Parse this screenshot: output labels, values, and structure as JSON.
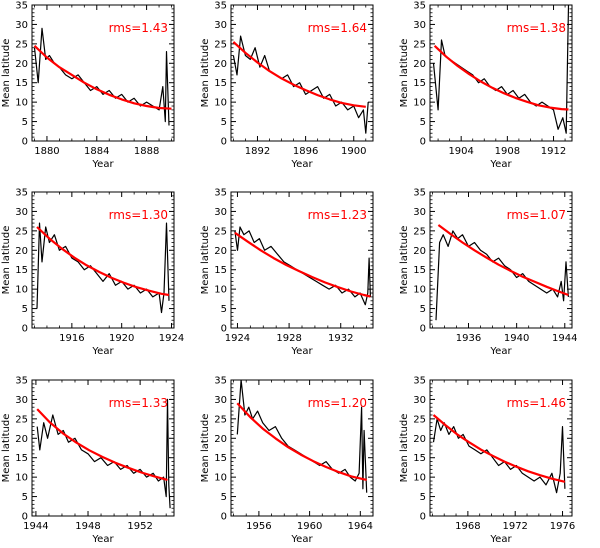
{
  "figure": {
    "colors": {
      "data": "#000000",
      "fit": "#ff0000",
      "rms": "#ff0000",
      "axes": "#000000"
    }
  },
  "chart_data": [
    {
      "type": "line",
      "title": "",
      "xlabel": "Year",
      "ylabel": "Mean latitude",
      "xlim": [
        1878.8,
        1890.2
      ],
      "ylim": [
        0,
        35
      ],
      "xticks": [
        1880,
        1884,
        1888
      ],
      "yticks": [
        0,
        5,
        10,
        15,
        20,
        25,
        30,
        35
      ],
      "annotation": "rms=1.43",
      "series": [
        {
          "name": "observed",
          "x": [
            1879.0,
            1879.3,
            1879.6,
            1879.9,
            1880.2,
            1880.6,
            1881.0,
            1881.5,
            1882.0,
            1882.5,
            1883.0,
            1883.5,
            1884.0,
            1884.5,
            1885.0,
            1885.5,
            1886.0,
            1886.5,
            1887.0,
            1887.5,
            1888.0,
            1888.5,
            1889.0,
            1889.3,
            1889.5,
            1889.6,
            1889.8
          ],
          "y": [
            24,
            15,
            29,
            21,
            22,
            20,
            19,
            17,
            16,
            17,
            15,
            13,
            14,
            12,
            13,
            11,
            12,
            10,
            11,
            9,
            10,
            9,
            8,
            14,
            5,
            23,
            4
          ]
        },
        {
          "name": "fit",
          "x": [
            1879,
            1880,
            1881,
            1882,
            1883,
            1884,
            1885,
            1886,
            1887,
            1888,
            1889,
            1890
          ],
          "y": [
            24.5,
            21.5,
            19,
            17,
            15,
            13.3,
            11.9,
            10.7,
            9.7,
            9,
            8.5,
            8.3
          ]
        }
      ]
    },
    {
      "type": "line",
      "title": "",
      "xlabel": "Year",
      "ylabel": "Mean latitude",
      "xlim": [
        1889.8,
        1901.6
      ],
      "ylim": [
        0,
        35
      ],
      "xticks": [
        1892,
        1896,
        1900
      ],
      "yticks": [
        0,
        5,
        10,
        15,
        20,
        25,
        30,
        35
      ],
      "annotation": "rms=1.64",
      "series": [
        {
          "name": "observed",
          "x": [
            1890.0,
            1890.3,
            1890.6,
            1891.0,
            1891.4,
            1891.8,
            1892.2,
            1892.6,
            1893.0,
            1893.5,
            1894.0,
            1894.5,
            1895.0,
            1895.5,
            1896.0,
            1896.5,
            1897.0,
            1897.5,
            1898.0,
            1898.5,
            1899.0,
            1899.5,
            1900.0,
            1900.4,
            1900.8,
            1901.0,
            1901.2
          ],
          "y": [
            22,
            17,
            27,
            22,
            21,
            24,
            19,
            22,
            18,
            17,
            16,
            17,
            14,
            15,
            12,
            13,
            14,
            11,
            12,
            9,
            10,
            8,
            9,
            6,
            8,
            2,
            10
          ]
        },
        {
          "name": "fit",
          "x": [
            1890,
            1891,
            1892,
            1893,
            1894,
            1895,
            1896,
            1897,
            1898,
            1899,
            1900,
            1901
          ],
          "y": [
            25.5,
            22.7,
            20.2,
            18,
            16.1,
            14.5,
            13.1,
            11.8,
            10.7,
            9.8,
            9.2,
            8.8
          ]
        }
      ]
    },
    {
      "type": "line",
      "title": "",
      "xlabel": "Year",
      "ylabel": "Mean latitude",
      "xlim": [
        1901.3,
        1913.6
      ],
      "ylim": [
        0,
        35
      ],
      "xticks": [
        1904,
        1908,
        1912
      ],
      "yticks": [
        0,
        5,
        10,
        15,
        20,
        25,
        30,
        35
      ],
      "annotation": "rms=1.38",
      "series": [
        {
          "name": "observed",
          "x": [
            1901.6,
            1902.0,
            1902.3,
            1902.6,
            1903.0,
            1903.5,
            1904.0,
            1904.5,
            1905.0,
            1905.5,
            1906.0,
            1906.5,
            1907.0,
            1907.5,
            1908.0,
            1908.5,
            1909.0,
            1909.5,
            1910.0,
            1910.5,
            1911.0,
            1911.5,
            1912.0,
            1912.4,
            1912.8,
            1913.1,
            1913.3
          ],
          "y": [
            20,
            8,
            26,
            22,
            21,
            20,
            19,
            18,
            17,
            15,
            16,
            14,
            13,
            14,
            12,
            13,
            11,
            12,
            10,
            9,
            10,
            9,
            8,
            3,
            6,
            2,
            35
          ]
        },
        {
          "name": "fit",
          "x": [
            1901.7,
            1902.7,
            1903.7,
            1904.7,
            1905.7,
            1906.7,
            1907.7,
            1908.7,
            1909.7,
            1910.7,
            1911.7,
            1912.7,
            1913.3
          ],
          "y": [
            24.5,
            21.7,
            19.3,
            17.2,
            15.3,
            13.7,
            12.3,
            11.1,
            10.1,
            9.2,
            8.6,
            8.2,
            8.1
          ]
        }
      ]
    },
    {
      "type": "line",
      "title": "",
      "xlabel": "Year",
      "ylabel": "Mean latitude",
      "xlim": [
        1912.8,
        1924.2
      ],
      "ylim": [
        0,
        35
      ],
      "xticks": [
        1916,
        1920,
        1924
      ],
      "yticks": [
        0,
        5,
        10,
        15,
        20,
        25,
        30,
        35
      ],
      "annotation": "rms=1.30",
      "series": [
        {
          "name": "observed",
          "x": [
            1913.2,
            1913.4,
            1913.6,
            1913.9,
            1914.2,
            1914.6,
            1915.0,
            1915.5,
            1916.0,
            1916.5,
            1917.0,
            1917.5,
            1918.0,
            1918.5,
            1919.0,
            1919.5,
            1920.0,
            1920.5,
            1921.0,
            1921.5,
            1922.0,
            1922.5,
            1923.0,
            1923.2,
            1923.4,
            1923.6,
            1923.8
          ],
          "y": [
            5,
            27,
            17,
            26,
            22,
            24,
            20,
            21,
            18,
            17,
            15,
            16,
            14,
            12,
            14,
            11,
            12,
            10,
            11,
            9,
            10,
            8,
            9,
            4,
            9,
            27,
            7
          ]
        },
        {
          "name": "fit",
          "x": [
            1913.2,
            1914.2,
            1915.2,
            1916.2,
            1917.2,
            1918.2,
            1919.2,
            1920.2,
            1921.2,
            1922.2,
            1923.2,
            1923.8
          ],
          "y": [
            26,
            23,
            20.4,
            18.1,
            16.1,
            14.4,
            12.9,
            11.6,
            10.5,
            9.6,
            8.8,
            8.5
          ]
        }
      ]
    },
    {
      "type": "line",
      "title": "",
      "xlabel": "Year",
      "ylabel": "Mean latitude",
      "xlim": [
        1923.5,
        1934.5
      ],
      "ylim": [
        0,
        35
      ],
      "xticks": [
        1924,
        1928,
        1932
      ],
      "yticks": [
        0,
        5,
        10,
        15,
        20,
        25,
        30,
        35
      ],
      "annotation": "rms=1.23",
      "series": [
        {
          "name": "observed",
          "x": [
            1923.8,
            1924.0,
            1924.2,
            1924.5,
            1924.9,
            1925.3,
            1925.7,
            1926.1,
            1926.6,
            1927.1,
            1927.6,
            1928.1,
            1928.6,
            1929.1,
            1929.6,
            1930.1,
            1930.6,
            1931.1,
            1931.6,
            1932.1,
            1932.6,
            1933.1,
            1933.5,
            1933.9,
            1934.1,
            1934.2,
            1934.3
          ],
          "y": [
            25,
            20,
            26,
            24,
            25,
            22,
            23,
            20,
            21,
            19,
            17,
            16,
            15,
            14,
            13,
            12,
            11,
            10,
            11,
            9,
            10,
            8,
            9,
            6,
            9,
            18,
            8
          ]
        },
        {
          "name": "fit",
          "x": [
            1923.8,
            1924.8,
            1925.8,
            1926.8,
            1927.8,
            1928.8,
            1929.8,
            1930.8,
            1931.8,
            1932.8,
            1933.8,
            1934.3
          ],
          "y": [
            24.5,
            22.2,
            20,
            18,
            16.2,
            14.6,
            13.1,
            11.7,
            10.5,
            9.4,
            8.5,
            8.1
          ]
        }
      ]
    },
    {
      "type": "line",
      "title": "",
      "xlabel": "Year",
      "ylabel": "Mean latitude",
      "xlim": [
        1932.8,
        1944.6
      ],
      "ylim": [
        0,
        35
      ],
      "xticks": [
        1936,
        1940,
        1944
      ],
      "yticks": [
        0,
        5,
        10,
        15,
        20,
        25,
        30,
        35
      ],
      "annotation": "rms=1.07",
      "series": [
        {
          "name": "observed",
          "x": [
            1933.3,
            1933.6,
            1933.9,
            1934.3,
            1934.7,
            1935.1,
            1935.5,
            1936.0,
            1936.5,
            1937.0,
            1937.5,
            1938.0,
            1938.5,
            1939.0,
            1939.5,
            1940.0,
            1940.5,
            1941.0,
            1941.5,
            1942.0,
            1942.5,
            1943.0,
            1943.4,
            1943.7,
            1943.9,
            1944.1,
            1944.3
          ],
          "y": [
            2,
            22,
            24,
            21,
            25,
            23,
            24,
            21,
            22,
            20,
            19,
            17,
            18,
            16,
            15,
            13,
            14,
            12,
            11,
            10,
            9,
            10,
            8,
            12,
            7,
            17,
            8
          ]
        },
        {
          "name": "fit",
          "x": [
            1933.5,
            1934.5,
            1935.5,
            1936.5,
            1937.5,
            1938.5,
            1939.5,
            1940.5,
            1941.5,
            1942.5,
            1943.5,
            1944.3
          ],
          "y": [
            26.5,
            24.2,
            22,
            20,
            18.1,
            16.3,
            14.7,
            13.2,
            11.9,
            10.6,
            9.4,
            8.5
          ]
        }
      ]
    },
    {
      "type": "line",
      "title": "",
      "xlabel": "Year",
      "ylabel": "Mean latitude",
      "xlim": [
        1943.7,
        1954.6
      ],
      "ylim": [
        0,
        35
      ],
      "xticks": [
        1944,
        1948,
        1952
      ],
      "yticks": [
        0,
        5,
        10,
        15,
        20,
        25,
        30,
        35
      ],
      "annotation": "rms=1.33",
      "series": [
        {
          "name": "observed",
          "x": [
            1944.1,
            1944.3,
            1944.6,
            1944.9,
            1945.3,
            1945.7,
            1946.1,
            1946.5,
            1947.0,
            1947.5,
            1948.0,
            1948.5,
            1949.0,
            1949.5,
            1950.0,
            1950.5,
            1951.0,
            1951.5,
            1952.0,
            1952.5,
            1953.0,
            1953.4,
            1953.8,
            1954.0,
            1954.1,
            1954.2,
            1954.3
          ],
          "y": [
            23,
            17,
            24,
            20,
            26,
            21,
            22,
            19,
            20,
            17,
            16,
            14,
            15,
            13,
            14,
            12,
            13,
            11,
            12,
            10,
            11,
            9,
            10,
            5,
            30,
            8,
            2
          ]
        },
        {
          "name": "fit",
          "x": [
            1944.1,
            1945.1,
            1946.1,
            1947.1,
            1948.1,
            1949.1,
            1950.1,
            1951.1,
            1952.1,
            1953.1,
            1954.1
          ],
          "y": [
            27.5,
            24,
            21.2,
            18.9,
            16.9,
            15.2,
            13.7,
            12.4,
            11.2,
            10.2,
            9.3
          ]
        }
      ]
    },
    {
      "type": "line",
      "title": "",
      "xlabel": "Year",
      "ylabel": "Mean latitude",
      "xlim": [
        1953.8,
        1965.0
      ],
      "ylim": [
        0,
        35
      ],
      "xticks": [
        1956,
        1960,
        1964
      ],
      "yticks": [
        0,
        5,
        10,
        15,
        20,
        25,
        30,
        35
      ],
      "annotation": "rms=1.20",
      "series": [
        {
          "name": "observed",
          "x": [
            1954.3,
            1954.6,
            1954.9,
            1955.2,
            1955.5,
            1955.9,
            1956.3,
            1956.8,
            1957.3,
            1957.8,
            1958.3,
            1958.8,
            1959.3,
            1959.8,
            1960.3,
            1960.8,
            1961.3,
            1961.8,
            1962.3,
            1962.8,
            1963.2,
            1963.6,
            1963.9,
            1964.1,
            1964.2,
            1964.3,
            1964.5
          ],
          "y": [
            21,
            35,
            26,
            28,
            25,
            27,
            24,
            22,
            23,
            20,
            18,
            17,
            16,
            15,
            14,
            13,
            14,
            12,
            11,
            12,
            10,
            9,
            11,
            28,
            7,
            22,
            6
          ]
        },
        {
          "name": "fit",
          "x": [
            1954.3,
            1955.3,
            1956.3,
            1957.3,
            1958.3,
            1959.3,
            1960.3,
            1961.3,
            1962.3,
            1963.3,
            1964.5
          ],
          "y": [
            29,
            25.5,
            22.5,
            20,
            17.7,
            15.8,
            14.1,
            12.6,
            11.3,
            10.2,
            9.3
          ]
        }
      ]
    },
    {
      "type": "line",
      "title": "",
      "xlabel": "Year",
      "ylabel": "Mean latitude",
      "xlim": [
        1964.8,
        1976.8
      ],
      "ylim": [
        0,
        35
      ],
      "xticks": [
        1968,
        1972,
        1976
      ],
      "yticks": [
        0,
        5,
        10,
        15,
        20,
        25,
        30,
        35
      ],
      "annotation": "rms=1.46",
      "series": [
        {
          "name": "observed",
          "x": [
            1965.1,
            1965.4,
            1965.7,
            1966.0,
            1966.4,
            1966.8,
            1967.2,
            1967.6,
            1968.1,
            1968.6,
            1969.1,
            1969.6,
            1970.1,
            1970.6,
            1971.1,
            1971.6,
            1972.1,
            1972.6,
            1973.1,
            1973.6,
            1974.1,
            1974.6,
            1975.1,
            1975.5,
            1975.8,
            1976.0,
            1976.2
          ],
          "y": [
            19,
            25,
            22,
            24,
            21,
            23,
            20,
            21,
            18,
            17,
            16,
            17,
            15,
            13,
            14,
            12,
            13,
            11,
            10,
            9,
            10,
            8,
            11,
            6,
            11,
            23,
            7
          ]
        },
        {
          "name": "fit",
          "x": [
            1965.1,
            1966.1,
            1967.1,
            1968.1,
            1969.1,
            1970.1,
            1971.1,
            1972.1,
            1973.1,
            1974.1,
            1975.1,
            1976.2
          ],
          "y": [
            26,
            23.4,
            21,
            19,
            17.1,
            15.5,
            14,
            12.7,
            11.5,
            10.5,
            9.6,
            8.8
          ]
        }
      ]
    }
  ]
}
